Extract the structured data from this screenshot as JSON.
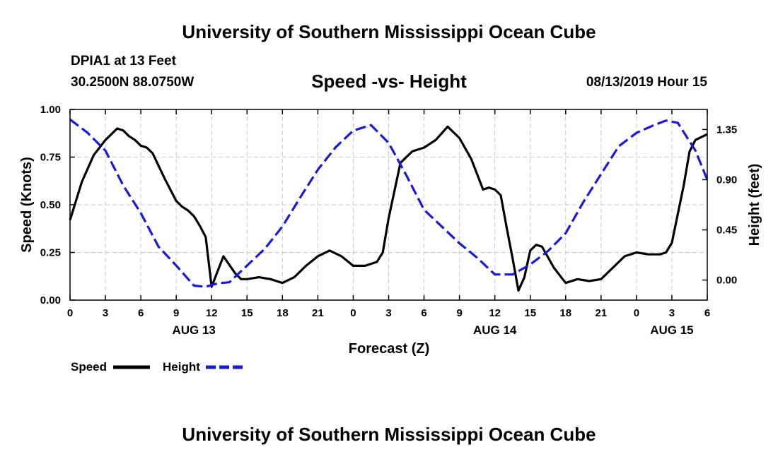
{
  "header": {
    "title": "University of Southern Mississippi Ocean Cube",
    "station": "DPIA1 at 13 Feet",
    "coords": "30.2500N 88.0750W",
    "date_hour": "08/13/2019 Hour 15",
    "footer_title": "University of Southern Mississippi Ocean Cube"
  },
  "legend": {
    "speed_label": "Speed",
    "height_label": "Height"
  },
  "chart_data": {
    "type": "line",
    "title": "Speed -vs- Height",
    "xlabel": "Forecast (Z)",
    "ylabel": "Speed (Knots)",
    "y2label": "Height (feet)",
    "x_unit": "forecast hour",
    "xlim": [
      0,
      54
    ],
    "ylim": [
      0,
      1.0
    ],
    "y2lim": [
      -0.18,
      1.53
    ],
    "grid": true,
    "x_ticks": [
      {
        "x": 0,
        "label": "0"
      },
      {
        "x": 3,
        "label": "3"
      },
      {
        "x": 6,
        "label": "6"
      },
      {
        "x": 9,
        "label": "9"
      },
      {
        "x": 12,
        "label": "12"
      },
      {
        "x": 15,
        "label": "15"
      },
      {
        "x": 18,
        "label": "18"
      },
      {
        "x": 21,
        "label": "21"
      },
      {
        "x": 24,
        "label": "0"
      },
      {
        "x": 27,
        "label": "3"
      },
      {
        "x": 30,
        "label": "6"
      },
      {
        "x": 33,
        "label": "9"
      },
      {
        "x": 36,
        "label": "12"
      },
      {
        "x": 39,
        "label": "15"
      },
      {
        "x": 42,
        "label": "18"
      },
      {
        "x": 45,
        "label": "21"
      },
      {
        "x": 48,
        "label": "0"
      },
      {
        "x": 51,
        "label": "3"
      },
      {
        "x": 54,
        "label": "6"
      }
    ],
    "date_labels": [
      {
        "x": 10.5,
        "label": "AUG 13"
      },
      {
        "x": 36,
        "label": "AUG 14"
      },
      {
        "x": 51,
        "label": "AUG 15"
      }
    ],
    "y_ticks": [
      {
        "v": 0,
        "label": "0.00"
      },
      {
        "v": 0.25,
        "label": "0.25"
      },
      {
        "v": 0.5,
        "label": "0.50"
      },
      {
        "v": 0.75,
        "label": "0.75"
      },
      {
        "v": 1.0,
        "label": "1.00"
      }
    ],
    "y2_ticks": [
      {
        "v": 0,
        "label": "0.00"
      },
      {
        "v": 0.45,
        "label": "0.45"
      },
      {
        "v": 0.9,
        "label": "0.90"
      },
      {
        "v": 1.35,
        "label": "1.35"
      }
    ],
    "series": [
      {
        "name": "Speed",
        "axis": "left",
        "color": "#000000",
        "dash": "solid",
        "x": [
          0,
          1,
          2,
          3,
          3.5,
          4,
          4.5,
          5,
          5.5,
          6,
          6.5,
          7,
          8,
          9,
          9.5,
          10,
          10.5,
          11,
          11.5,
          12,
          13,
          14,
          14.5,
          15,
          16,
          17,
          18,
          19,
          20,
          21,
          22,
          23,
          24,
          25,
          26,
          26.5,
          27,
          28,
          29,
          30,
          31,
          32,
          33,
          34,
          35,
          35.5,
          36,
          36.5,
          37,
          37.5,
          38,
          38.5,
          39,
          39.5,
          40,
          41,
          42,
          43,
          44,
          45,
          46,
          47,
          48,
          49,
          50,
          50.5,
          51,
          52,
          52.5,
          53,
          54
        ],
        "y": [
          0.42,
          0.62,
          0.76,
          0.84,
          0.87,
          0.9,
          0.89,
          0.86,
          0.84,
          0.81,
          0.8,
          0.77,
          0.64,
          0.52,
          0.49,
          0.47,
          0.44,
          0.39,
          0.33,
          0.07,
          0.23,
          0.14,
          0.11,
          0.11,
          0.12,
          0.11,
          0.09,
          0.12,
          0.18,
          0.23,
          0.26,
          0.23,
          0.18,
          0.18,
          0.2,
          0.25,
          0.43,
          0.72,
          0.78,
          0.8,
          0.84,
          0.91,
          0.85,
          0.74,
          0.58,
          0.59,
          0.58,
          0.55,
          0.38,
          0.22,
          0.05,
          0.12,
          0.26,
          0.29,
          0.28,
          0.17,
          0.09,
          0.11,
          0.1,
          0.11,
          0.17,
          0.23,
          0.25,
          0.24,
          0.24,
          0.25,
          0.3,
          0.6,
          0.78,
          0.84,
          0.87
        ]
      },
      {
        "name": "Height",
        "axis": "right",
        "color": "#1a1ad6",
        "dash": "dashed",
        "x": [
          0,
          1.5,
          3,
          4.5,
          6,
          7.5,
          9,
          10.5,
          11.5,
          12.5,
          13.5,
          15,
          16.5,
          18,
          19.5,
          21,
          22.5,
          24,
          25.5,
          27,
          28.5,
          30,
          31.5,
          33,
          34.5,
          36,
          37.5,
          39,
          40.5,
          42,
          43.5,
          45,
          46.5,
          48,
          49.5,
          50.5,
          51.5,
          53,
          54
        ],
        "y": [
          1.44,
          1.32,
          1.16,
          0.85,
          0.6,
          0.3,
          0.13,
          -0.05,
          -0.06,
          -0.03,
          -0.02,
          0.13,
          0.28,
          0.48,
          0.74,
          0.99,
          1.19,
          1.34,
          1.39,
          1.23,
          0.94,
          0.63,
          0.48,
          0.33,
          0.2,
          0.05,
          0.05,
          0.14,
          0.26,
          0.42,
          0.7,
          0.95,
          1.2,
          1.32,
          1.39,
          1.43,
          1.41,
          1.16,
          0.9
        ]
      }
    ]
  }
}
